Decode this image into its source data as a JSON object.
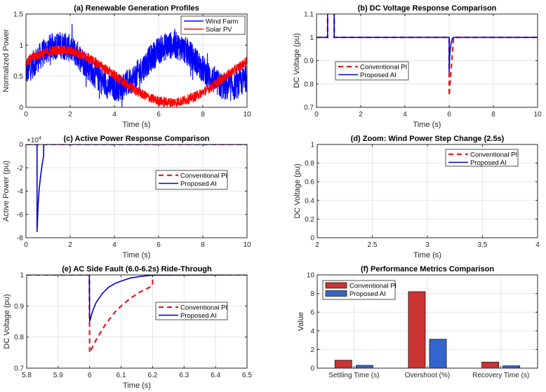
{
  "figure": {
    "colors": {
      "wind": "#0000ff",
      "solar": "#ff0000",
      "pi": "#e31a1c",
      "ai": "#0000cc",
      "bar_pi": "#cc3333",
      "bar_ai": "#3366cc"
    }
  },
  "chart_data": [
    {
      "id": "a",
      "type": "line",
      "title": "(a) Renewable Generation Profiles",
      "xlabel": "Time (s)",
      "ylabel": "Normalized Power",
      "xlim": [
        0,
        10
      ],
      "ylim": [
        0,
        1.5
      ],
      "xticks": [
        0,
        2,
        4,
        6,
        8,
        10
      ],
      "yticks": [
        0,
        0.5,
        1,
        1.5
      ],
      "xtick_labels": [
        "0",
        "2",
        "4",
        "6",
        "8",
        "10"
      ],
      "ytick_labels": [
        "0",
        "0.5",
        "1",
        "1.5"
      ],
      "grid": true,
      "legend": "top-right",
      "series": [
        {
          "name": "Wind Farm",
          "color_key": "wind",
          "style": "solid",
          "model": "0.65 + 0.35*sin(2*pi*t/5.1 - 0.35) + noise(±0.3)",
          "x": [
            0,
            1,
            1.5,
            2,
            3,
            3.5,
            4,
            5,
            6,
            6.3,
            7,
            8,
            9,
            10
          ],
          "y": [
            0.7,
            0.95,
            1.05,
            0.95,
            0.6,
            0.4,
            0.45,
            0.75,
            0.95,
            1.0,
            0.85,
            0.45,
            0.4,
            0.65
          ]
        },
        {
          "name": "Solar PV",
          "color_key": "solar",
          "style": "solid",
          "model": "0.5 + 0.42*sin(2*pi*t/10 + 0.55) + noise(±0.08)",
          "x": [
            0,
            1,
            2,
            3,
            4,
            5,
            6,
            7,
            8,
            9,
            10
          ],
          "y": [
            0.8,
            0.92,
            0.88,
            0.7,
            0.45,
            0.22,
            0.1,
            0.13,
            0.32,
            0.55,
            0.78
          ]
        }
      ]
    },
    {
      "id": "b",
      "type": "line",
      "title": "(b) DC Voltage Response Comparison",
      "xlabel": "Time (s)",
      "ylabel": "DC Voltage (pu)",
      "xlim": [
        0,
        10
      ],
      "ylim": [
        0.7,
        1.1
      ],
      "xticks": [
        0,
        2,
        4,
        6,
        8,
        10
      ],
      "yticks": [
        0.7,
        0.8,
        0.9,
        1,
        1.1
      ],
      "xtick_labels": [
        "0",
        "2",
        "4",
        "6",
        "8",
        "10"
      ],
      "ytick_labels": [
        "0.7",
        "0.8",
        "0.9",
        "1",
        "1.1"
      ],
      "grid": true,
      "legend": "center-left",
      "series": [
        {
          "name": "Conventional PI",
          "color_key": "pi",
          "style": "dashed",
          "x": [
            0,
            0.5,
            0.5,
            0.8,
            0.8,
            6.0,
            6.0,
            6.2,
            10
          ],
          "y": [
            1,
            1,
            1.2,
            1.2,
            1,
            1,
            0.75,
            1,
            1
          ]
        },
        {
          "name": "Proposed AI",
          "color_key": "ai",
          "style": "solid",
          "x": [
            0,
            0.5,
            0.5,
            0.8,
            0.8,
            6.0,
            6.0,
            6.02,
            6.05,
            6.1,
            6.15,
            6.2,
            10
          ],
          "y": [
            1,
            1,
            1.2,
            1.2,
            1,
            1,
            0.85,
            0.91,
            0.95,
            0.98,
            0.995,
            1,
            1
          ]
        }
      ]
    },
    {
      "id": "c",
      "type": "line",
      "title": "(c) Active Power Response Comparison",
      "xlabel": "Time (s)",
      "ylabel": "Active Power (pu)",
      "exponent_label": "×10",
      "exponent_power": "4",
      "xlim": [
        0,
        10
      ],
      "ylim": [
        -8,
        0
      ],
      "xticks": [
        0,
        2,
        4,
        6,
        8,
        10
      ],
      "yticks": [
        -8,
        -6,
        -4,
        -2,
        0
      ],
      "xtick_labels": [
        "0",
        "2",
        "4",
        "6",
        "8",
        "10"
      ],
      "ytick_labels": [
        "-8",
        "-6",
        "-4",
        "-2",
        "0"
      ],
      "grid": true,
      "legend": "center-right",
      "series": [
        {
          "name": "Conventional PI",
          "color_key": "pi",
          "style": "dashed",
          "x": [
            0,
            10
          ],
          "y": [
            0,
            0
          ]
        },
        {
          "name": "Proposed AI",
          "color_key": "ai",
          "style": "solid",
          "x": [
            0,
            0.5,
            0.5,
            0.55,
            0.6,
            0.65,
            0.7,
            0.75,
            0.8,
            0.8,
            10
          ],
          "y": [
            0,
            0,
            -7.5,
            -5.2,
            -3.8,
            -2.9,
            -2.2,
            -1.5,
            -1,
            0,
            0
          ]
        }
      ]
    },
    {
      "id": "d",
      "type": "line",
      "title": "(d) Zoom: Wind Power Step Change (2.5s)",
      "xlabel": "Time (s)",
      "ylabel": "DC Voltage (pu)",
      "xlim": [
        2,
        4
      ],
      "ylim": [
        0,
        1
      ],
      "xticks": [
        2,
        2.5,
        3,
        3.5,
        4
      ],
      "yticks": [
        0,
        0.2,
        0.4,
        0.6,
        0.8,
        1
      ],
      "xtick_labels": [
        "2",
        "2.5",
        "3",
        "3.5",
        "4"
      ],
      "ytick_labels": [
        "0",
        "0.2",
        "0.4",
        "0.6",
        "0.8",
        "1"
      ],
      "grid": true,
      "legend": "top-right",
      "series": [
        {
          "name": "Conventional PI",
          "color_key": "pi",
          "style": "dashed",
          "x": [],
          "y": []
        },
        {
          "name": "Proposed AI",
          "color_key": "ai",
          "style": "solid",
          "x": [],
          "y": []
        }
      ]
    },
    {
      "id": "e",
      "type": "line",
      "title": "(e) AC Side Fault (6.0-6.2s) Ride-Through",
      "xlabel": "Time (s)",
      "ylabel": "DC Voltage (pu)",
      "xlim": [
        5.8,
        6.5
      ],
      "ylim": [
        0.7,
        1
      ],
      "xticks": [
        5.8,
        5.9,
        6,
        6.1,
        6.2,
        6.3,
        6.4,
        6.5
      ],
      "yticks": [
        0.7,
        0.8,
        0.9,
        1
      ],
      "xtick_labels": [
        "5.8",
        "5.9",
        "6",
        "6.1",
        "6.2",
        "6.3",
        "6.4",
        "6.5"
      ],
      "ytick_labels": [
        "0.7",
        "0.8",
        "0.9",
        "1"
      ],
      "grid": true,
      "legend": "center-right",
      "series": [
        {
          "name": "Conventional PI",
          "color_key": "pi",
          "style": "dashed",
          "x": [
            5.8,
            5.999,
            6.0,
            6.02,
            6.05,
            6.08,
            6.1,
            6.13,
            6.16,
            6.2,
            6.2,
            6.5
          ],
          "y": [
            1,
            1,
            0.75,
            0.79,
            0.84,
            0.88,
            0.9,
            0.925,
            0.945,
            0.965,
            1,
            1
          ]
        },
        {
          "name": "Proposed AI",
          "color_key": "ai",
          "style": "solid",
          "x": [
            5.8,
            5.999,
            6.0,
            6.01,
            6.02,
            6.04,
            6.06,
            6.08,
            6.1,
            6.13,
            6.16,
            6.2,
            6.5
          ],
          "y": [
            1,
            1,
            0.85,
            0.885,
            0.91,
            0.94,
            0.96,
            0.972,
            0.98,
            0.99,
            0.995,
            0.999,
            1
          ]
        }
      ]
    },
    {
      "id": "f",
      "type": "bar",
      "title": "(f) Performance Metrics Comparison",
      "xlabel": "",
      "ylabel": "Value",
      "ylim": [
        0,
        10
      ],
      "yticks": [
        0,
        2,
        4,
        6,
        8,
        10
      ],
      "ytick_labels": [
        "0",
        "2",
        "4",
        "6",
        "8",
        "10"
      ],
      "categories": [
        "Settling Time (s)",
        "Overshoot (%)",
        "Recovery Time (s)"
      ],
      "grid": true,
      "legend": "top-left",
      "series": [
        {
          "name": "Conventional PI",
          "color_key": "bar_pi",
          "values": [
            0.85,
            8.2,
            0.65
          ]
        },
        {
          "name": "Proposed AI",
          "color_key": "bar_ai",
          "values": [
            0.3,
            3.1,
            0.25
          ]
        }
      ]
    }
  ]
}
